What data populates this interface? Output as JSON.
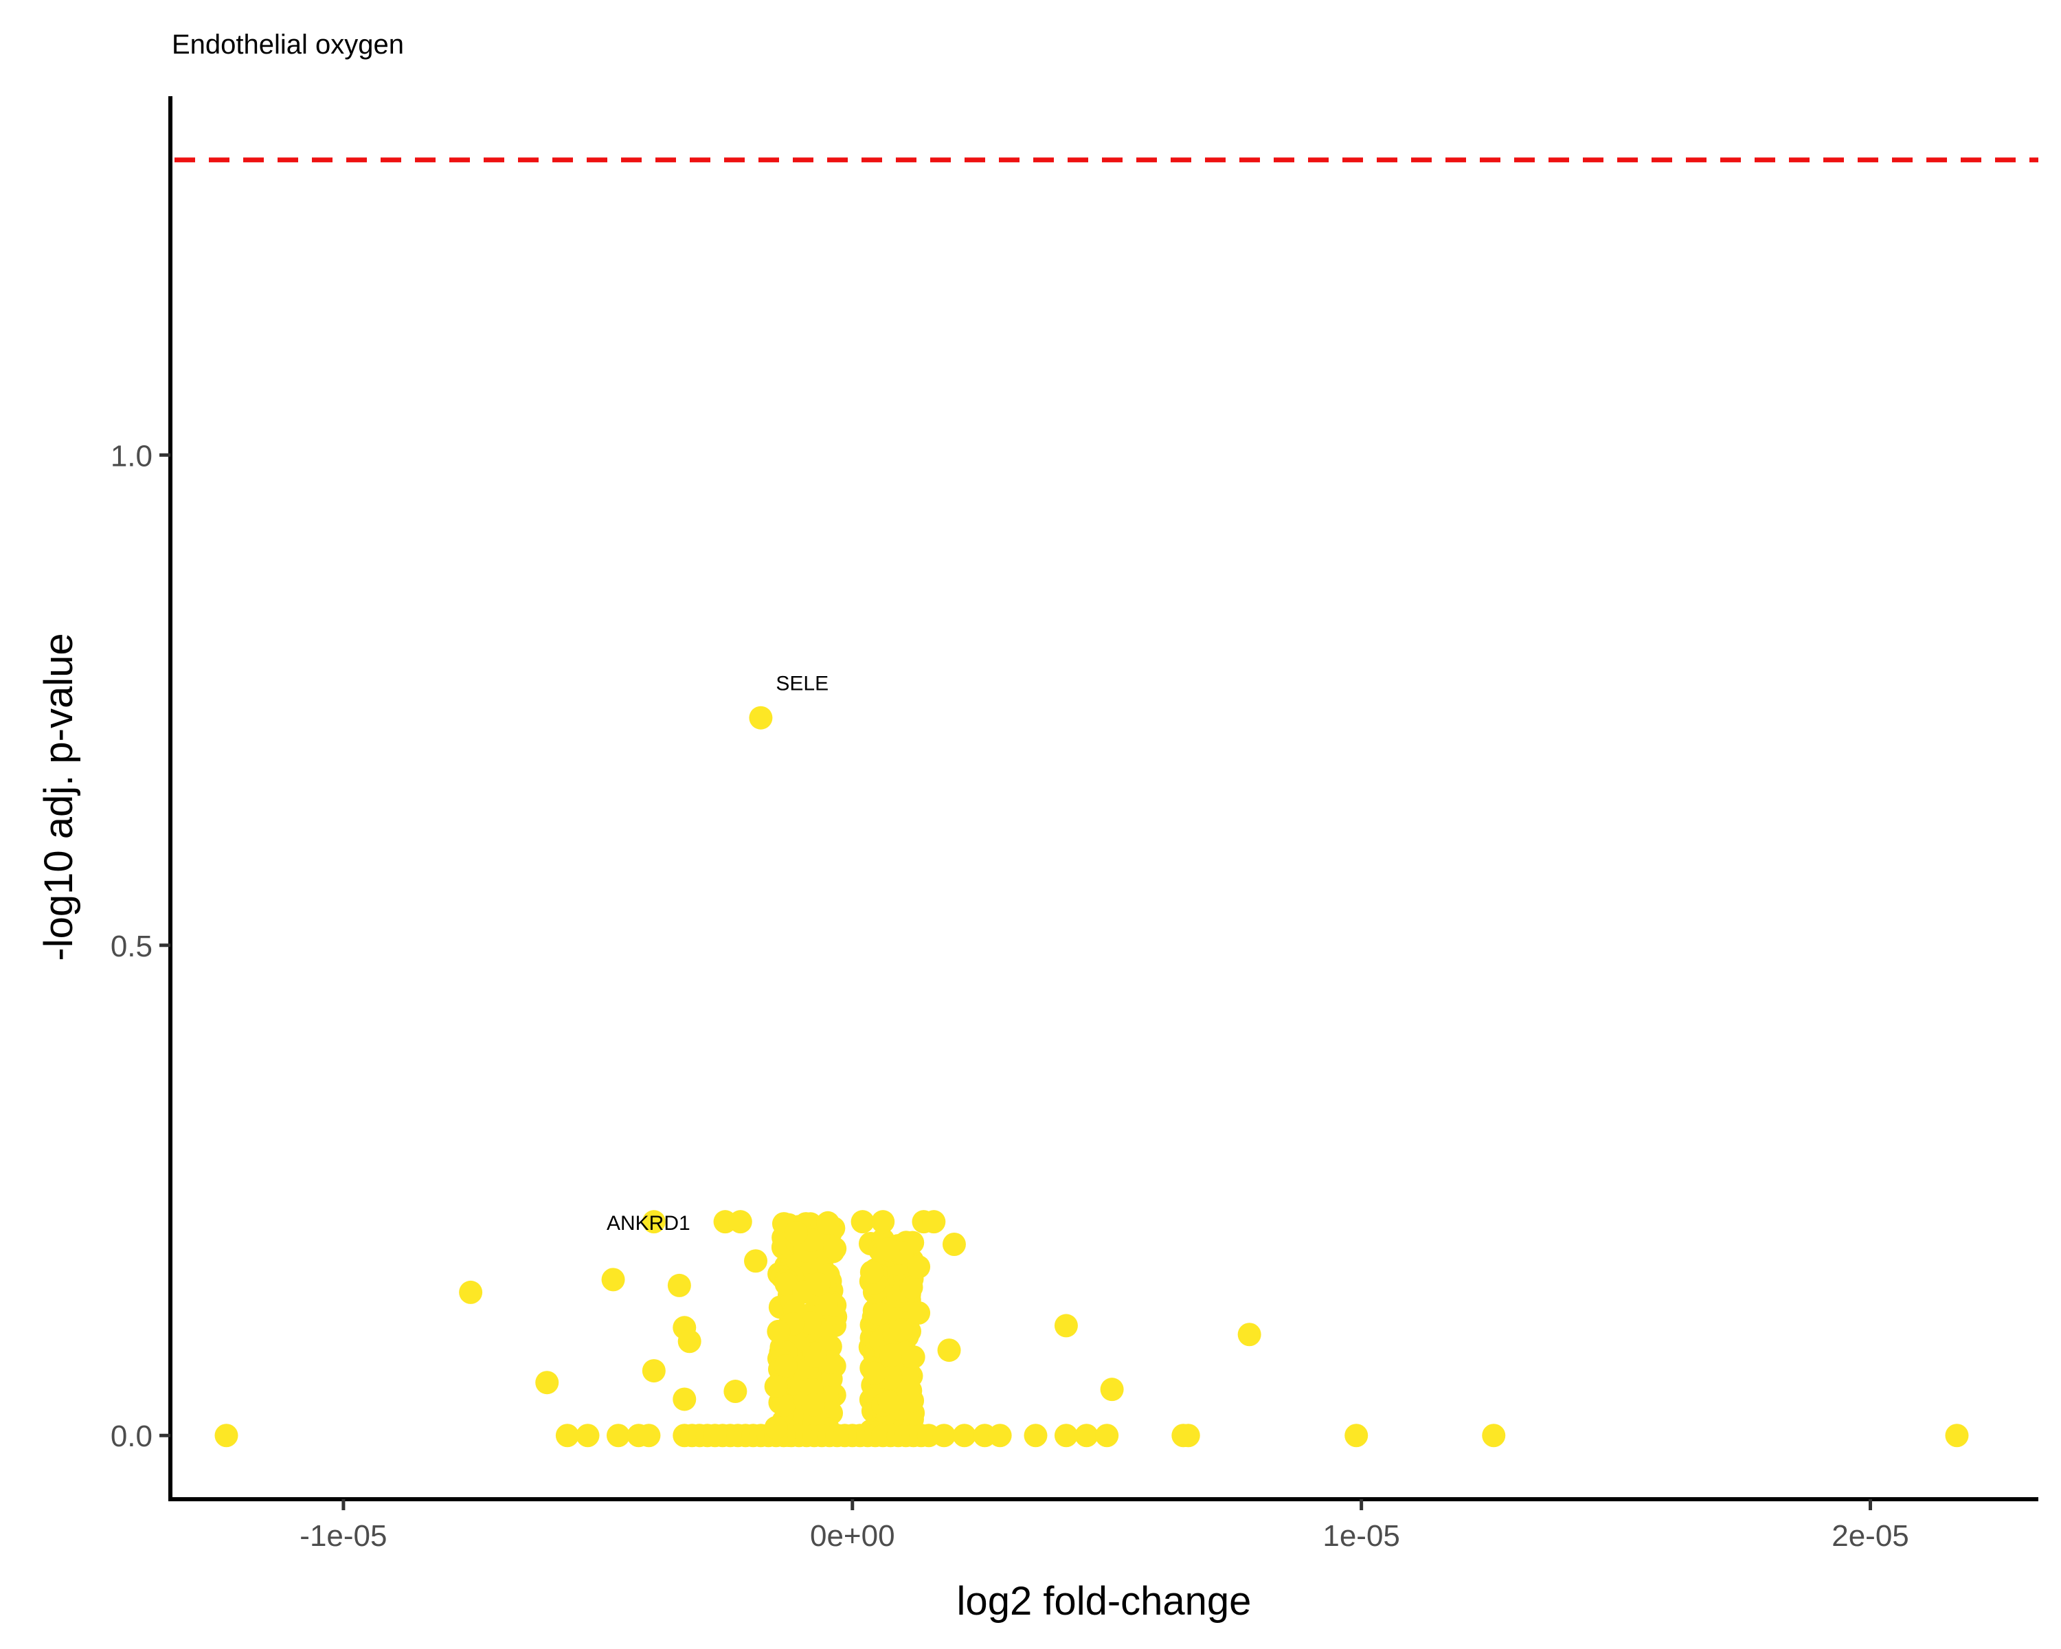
{
  "chart_data": {
    "type": "scatter",
    "title": "Endothelial oxygen",
    "xlabel": "log2 fold-change",
    "ylabel": "-log10 adj. p-value",
    "xlim": [
      -1.34e-05,
      2.33e-05
    ],
    "ylim": [
      -0.065,
      1.366
    ],
    "x_ticks": [
      {
        "value": -1e-05,
        "label": "-1e-05"
      },
      {
        "value": 0,
        "label": "0e+00"
      },
      {
        "value": 1e-05,
        "label": "1e-05"
      },
      {
        "value": 2e-05,
        "label": "2e-05"
      }
    ],
    "y_ticks": [
      {
        "value": 0,
        "label": "0.0"
      },
      {
        "value": 0.5,
        "label": "0.5"
      },
      {
        "value": 1,
        "label": "1.0"
      }
    ],
    "threshold": {
      "y": 1.301,
      "color": "#ee1111",
      "style": "dashed"
    },
    "point_color": "#fde725",
    "labeled_points": [
      {
        "label": "SELE",
        "x": -1.8e-06,
        "y": 0.732
      },
      {
        "label": "ANKRD1",
        "x": -3.9e-06,
        "y": 0.218
      }
    ],
    "points": [
      {
        "x": -1.23e-05,
        "y": 0
      },
      {
        "x": -7.5e-06,
        "y": 0.146
      },
      {
        "x": -6e-06,
        "y": 0.054
      },
      {
        "x": -5.6e-06,
        "y": 0
      },
      {
        "x": -5.2e-06,
        "y": 0
      },
      {
        "x": -4.7e-06,
        "y": 0.159
      },
      {
        "x": -4.6e-06,
        "y": 0
      },
      {
        "x": -4.2e-06,
        "y": 0
      },
      {
        "x": -4e-06,
        "y": 0
      },
      {
        "x": -3.9e-06,
        "y": 0.066
      },
      {
        "x": -3.4e-06,
        "y": 0.153
      },
      {
        "x": -3.3e-06,
        "y": 0.11
      },
      {
        "x": -3.2e-06,
        "y": 0.096
      },
      {
        "x": -3.3e-06,
        "y": 0.037
      },
      {
        "x": -2.3e-06,
        "y": 0.045
      },
      {
        "x": -1.9e-06,
        "y": 0.178
      },
      {
        "x": -2.5e-06,
        "y": 0.218
      },
      {
        "x": -2.2e-06,
        "y": 0.218
      },
      {
        "x": -1.5e-06,
        "y": 0.05
      },
      {
        "x": -1.5e-06,
        "y": 0.008
      },
      {
        "x": 2e-06,
        "y": 0.195
      },
      {
        "x": 1.9e-06,
        "y": 0.087
      },
      {
        "x": 4.2e-06,
        "y": 0.112
      },
      {
        "x": 5.1e-06,
        "y": 0.047
      },
      {
        "x": 6.5e-06,
        "y": 0
      },
      {
        "x": 6.6e-06,
        "y": 0
      },
      {
        "x": 7.8e-06,
        "y": 0.103
      },
      {
        "x": 9.9e-06,
        "y": 0
      },
      {
        "x": 1.26e-05,
        "y": 0
      },
      {
        "x": 2.17e-05,
        "y": 0
      },
      {
        "x": 1.8e-06,
        "y": 0
      },
      {
        "x": 2.2e-06,
        "y": 0
      },
      {
        "x": 2.6e-06,
        "y": 0
      },
      {
        "x": 2.9e-06,
        "y": 0
      },
      {
        "x": 3.6e-06,
        "y": 0
      },
      {
        "x": 4.2e-06,
        "y": 0
      },
      {
        "x": 4.6e-06,
        "y": 0
      },
      {
        "x": 5e-06,
        "y": 0
      },
      {
        "x": 1.4e-06,
        "y": 0.218
      },
      {
        "x": 1.6e-06,
        "y": 0.218
      },
      {
        "x": 1.3e-06,
        "y": 0.172
      },
      {
        "x": 1.3e-06,
        "y": 0.125
      },
      {
        "x": 6e-07,
        "y": 0.218
      },
      {
        "x": 2e-07,
        "y": 0.218
      },
      {
        "x": 7e-07,
        "y": 0.19
      },
      {
        "x": 1.2e-06,
        "y": 0.08
      },
      {
        "x": 1.1e-06,
        "y": 0.045
      }
    ],
    "columns": [
      {
        "x_min": -1.45e-06,
        "x_max": -3e-07,
        "y_min": 0,
        "y_max": 0.218
      },
      {
        "x_min": 3.5e-07,
        "x_max": 1.2e-06,
        "y_min": 0,
        "y_max": 0.2
      }
    ],
    "baseline_row": {
      "x_min": -3.3e-06,
      "x_max": 1.5e-06,
      "y": 0
    }
  }
}
